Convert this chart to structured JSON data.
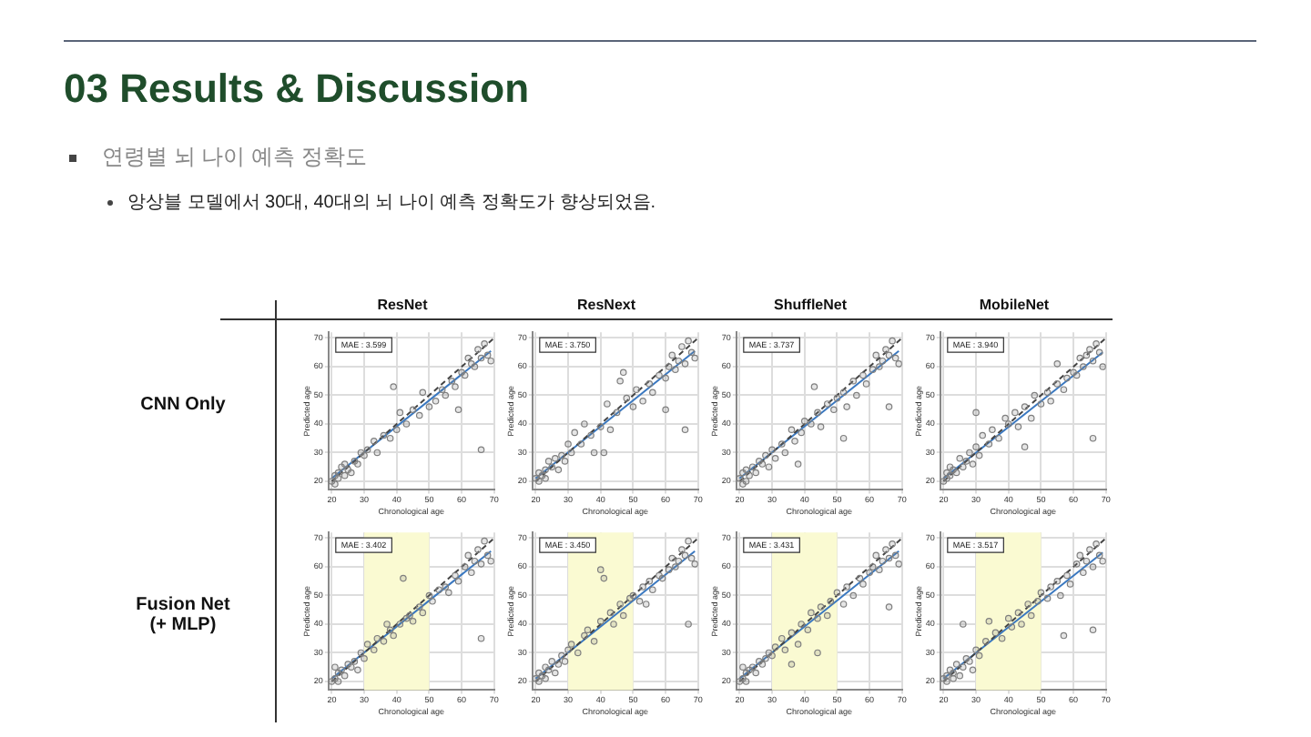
{
  "chart_data": [
    {
      "type": "scatter",
      "title": "ResNet",
      "xlabel": "Chronological age",
      "ylabel": "Predicted age",
      "annotations": [
        "03 Results & Discussion",
        "연령별 뇌 나이 예측 정확도",
        "앙상블 모델에서 30대, 40대의 뇌 나이 예측 정확도가 향상되었음.",
        "MAE : 3.599",
        "CNN Only"
      ],
      "xlim": [
        19,
        70
      ],
      "ylim": [
        17,
        72
      ],
      "xticks": [
        20,
        30,
        40,
        50,
        60,
        70
      ],
      "yticks": [
        20,
        30,
        40,
        50,
        60,
        70
      ],
      "grid": true,
      "legend": false,
      "marker": "circle",
      "series": [
        {
          "type": "scatter",
          "color": "#7f7f7f",
          "x": [
            20,
            21,
            21,
            22,
            22,
            23,
            24,
            24,
            25,
            26,
            27,
            28,
            29,
            30,
            31,
            33,
            34,
            36,
            38,
            40,
            41,
            43,
            45,
            47,
            48,
            50,
            52,
            54,
            55,
            57,
            58,
            60,
            61,
            62,
            63,
            64,
            65,
            66,
            67,
            68,
            69,
            66,
            39,
            59
          ],
          "values": [
            20,
            22,
            19,
            23,
            21,
            25,
            22,
            26,
            24,
            23,
            27,
            26,
            30,
            29,
            31,
            34,
            30,
            36,
            35,
            38,
            44,
            40,
            45,
            43,
            51,
            46,
            48,
            52,
            50,
            55,
            53,
            58,
            57,
            63,
            61,
            60,
            66,
            63,
            68,
            64,
            62,
            31,
            53,
            45
          ]
        },
        {
          "type": "line",
          "color": "#444444",
          "line_style": "dashed",
          "marker": "none",
          "x": [
            20,
            70
          ],
          "values": [
            20,
            70
          ]
        },
        {
          "type": "line",
          "color": "#3a78c0",
          "marker": "none",
          "x": [
            20,
            69
          ],
          "values": [
            21,
            65.5
          ]
        }
      ]
    },
    {
      "type": "scatter",
      "title": "ResNext",
      "xlabel": "Chronological age",
      "ylabel": "Predicted age",
      "annotations": [
        "MAE : 3.750"
      ],
      "xlim": [
        19,
        70
      ],
      "ylim": [
        17,
        72
      ],
      "xticks": [
        20,
        30,
        40,
        50,
        60,
        70
      ],
      "yticks": [
        20,
        30,
        40,
        50,
        60,
        70
      ],
      "grid": true,
      "legend": false,
      "marker": "circle",
      "series": [
        {
          "type": "scatter",
          "color": "#7f7f7f",
          "x": [
            20,
            21,
            21,
            22,
            23,
            23,
            24,
            25,
            26,
            27,
            28,
            29,
            30,
            31,
            32,
            34,
            35,
            37,
            38,
            40,
            42,
            43,
            45,
            46,
            48,
            50,
            51,
            53,
            55,
            56,
            58,
            60,
            61,
            62,
            63,
            64,
            65,
            66,
            67,
            68,
            69,
            66,
            41,
            60,
            47
          ],
          "values": [
            21,
            20,
            23,
            22,
            24,
            21,
            27,
            25,
            28,
            24,
            29,
            27,
            33,
            30,
            37,
            33,
            40,
            36,
            30,
            39,
            47,
            38,
            44,
            55,
            49,
            46,
            52,
            48,
            54,
            51,
            57,
            56,
            60,
            64,
            59,
            62,
            67,
            61,
            69,
            65,
            63,
            38,
            30,
            45,
            58
          ]
        },
        {
          "type": "line",
          "color": "#444444",
          "line_style": "dashed",
          "marker": "none",
          "x": [
            20,
            70
          ],
          "values": [
            20,
            70
          ]
        },
        {
          "type": "line",
          "color": "#3a78c0",
          "marker": "none",
          "x": [
            20,
            69
          ],
          "values": [
            21,
            65.5
          ]
        }
      ]
    },
    {
      "type": "scatter",
      "title": "ShuffleNet",
      "xlabel": "Chronological age",
      "ylabel": "Predicted age",
      "annotations": [
        "MAE : 3.737"
      ],
      "xlim": [
        19,
        70
      ],
      "ylim": [
        17,
        72
      ],
      "xticks": [
        20,
        30,
        40,
        50,
        60,
        70
      ],
      "yticks": [
        20,
        30,
        40,
        50,
        60,
        70
      ],
      "grid": true,
      "legend": false,
      "marker": "circle",
      "series": [
        {
          "type": "scatter",
          "color": "#7f7f7f",
          "x": [
            20,
            21,
            21,
            22,
            22,
            23,
            24,
            25,
            26,
            27,
            28,
            29,
            30,
            31,
            33,
            34,
            36,
            37,
            39,
            40,
            42,
            44,
            45,
            47,
            49,
            50,
            52,
            53,
            55,
            56,
            58,
            59,
            61,
            62,
            63,
            64,
            65,
            66,
            67,
            68,
            69,
            66,
            38,
            52,
            43
          ],
          "values": [
            21,
            19,
            23,
            20,
            24,
            22,
            25,
            23,
            27,
            26,
            29,
            25,
            31,
            28,
            33,
            30,
            38,
            34,
            37,
            41,
            40,
            44,
            39,
            47,
            45,
            49,
            51,
            46,
            55,
            50,
            57,
            54,
            59,
            64,
            60,
            62,
            66,
            64,
            69,
            63,
            61,
            46,
            26,
            35,
            53
          ]
        },
        {
          "type": "line",
          "color": "#444444",
          "line_style": "dashed",
          "marker": "none",
          "x": [
            20,
            70
          ],
          "values": [
            20,
            70
          ]
        },
        {
          "type": "line",
          "color": "#3a78c0",
          "marker": "none",
          "x": [
            20,
            69
          ],
          "values": [
            21,
            65.5
          ]
        }
      ]
    },
    {
      "type": "scatter",
      "title": "MobileNet",
      "xlabel": "Chronological age",
      "ylabel": "Predicted age",
      "annotations": [
        "MAE : 3.940"
      ],
      "xlim": [
        19,
        70
      ],
      "ylim": [
        17,
        72
      ],
      "xticks": [
        20,
        30,
        40,
        50,
        60,
        70
      ],
      "yticks": [
        20,
        30,
        40,
        50,
        60,
        70
      ],
      "grid": true,
      "legend": false,
      "marker": "circle",
      "series": [
        {
          "type": "scatter",
          "color": "#7f7f7f",
          "x": [
            20,
            21,
            21,
            22,
            22,
            23,
            24,
            25,
            26,
            27,
            28,
            29,
            30,
            31,
            32,
            34,
            35,
            37,
            39,
            40,
            42,
            43,
            45,
            47,
            48,
            50,
            52,
            53,
            55,
            57,
            58,
            60,
            61,
            62,
            63,
            64,
            65,
            66,
            67,
            68,
            69,
            66,
            30,
            45,
            55
          ],
          "values": [
            20,
            23,
            21,
            22,
            25,
            24,
            23,
            28,
            25,
            27,
            30,
            26,
            32,
            29,
            36,
            33,
            38,
            35,
            42,
            40,
            44,
            39,
            46,
            42,
            50,
            47,
            51,
            48,
            54,
            52,
            56,
            58,
            57,
            63,
            60,
            64,
            66,
            62,
            68,
            65,
            60,
            35,
            44,
            32,
            61
          ]
        },
        {
          "type": "line",
          "color": "#444444",
          "line_style": "dashed",
          "marker": "none",
          "x": [
            20,
            70
          ],
          "values": [
            20,
            70
          ]
        },
        {
          "type": "line",
          "color": "#3a78c0",
          "marker": "none",
          "x": [
            20,
            69
          ],
          "values": [
            21,
            65
          ]
        }
      ]
    },
    {
      "type": "scatter",
      "xlabel": "Chronological age",
      "ylabel": "Predicted age",
      "annotations": [
        "MAE : 3.402",
        "Fusion Net\n(+ MLP)"
      ],
      "xlim": [
        19,
        70
      ],
      "ylim": [
        17,
        72
      ],
      "xticks": [
        20,
        30,
        40,
        50,
        60,
        70
      ],
      "yticks": [
        20,
        30,
        40,
        50,
        60,
        70
      ],
      "grid": true,
      "legend": false,
      "marker": "circle",
      "bands": [
        {
          "axis": "x",
          "from": 30,
          "to": 50,
          "color": "#fafad2"
        }
      ],
      "series": [
        {
          "type": "scatter",
          "color": "#7f7f7f",
          "x": [
            20,
            21,
            21,
            22,
            22,
            23,
            24,
            25,
            26,
            27,
            28,
            29,
            30,
            31,
            33,
            34,
            36,
            38,
            39,
            41,
            42,
            44,
            45,
            47,
            48,
            50,
            51,
            53,
            55,
            56,
            58,
            59,
            61,
            62,
            63,
            64,
            65,
            66,
            67,
            68,
            69,
            66,
            43,
            37
          ],
          "values": [
            20,
            25,
            21,
            23,
            20,
            24,
            22,
            26,
            25,
            27,
            24,
            30,
            28,
            33,
            31,
            35,
            34,
            38,
            36,
            40,
            56,
            43,
            41,
            46,
            44,
            50,
            48,
            52,
            53,
            51,
            57,
            55,
            60,
            64,
            58,
            62,
            66,
            61,
            69,
            64,
            62,
            35,
            42,
            40
          ]
        },
        {
          "type": "line",
          "color": "#444444",
          "line_style": "dashed",
          "marker": "none",
          "x": [
            20,
            70
          ],
          "values": [
            20,
            70
          ]
        },
        {
          "type": "line",
          "color": "#3a78c0",
          "marker": "none",
          "x": [
            20,
            69
          ],
          "values": [
            21,
            65.5
          ]
        }
      ]
    },
    {
      "type": "scatter",
      "xlabel": "Chronological age",
      "ylabel": "Predicted age",
      "annotations": [
        "MAE : 3.450"
      ],
      "xlim": [
        19,
        70
      ],
      "ylim": [
        17,
        72
      ],
      "xticks": [
        20,
        30,
        40,
        50,
        60,
        70
      ],
      "yticks": [
        20,
        30,
        40,
        50,
        60,
        70
      ],
      "grid": true,
      "legend": false,
      "marker": "circle",
      "bands": [
        {
          "axis": "x",
          "from": 30,
          "to": 50,
          "color": "#fafad2"
        }
      ],
      "series": [
        {
          "type": "scatter",
          "color": "#7f7f7f",
          "x": [
            20,
            21,
            21,
            22,
            23,
            23,
            24,
            25,
            26,
            27,
            28,
            29,
            30,
            31,
            33,
            35,
            36,
            38,
            40,
            41,
            43,
            44,
            46,
            47,
            49,
            50,
            52,
            53,
            55,
            56,
            58,
            59,
            61,
            62,
            63,
            64,
            65,
            66,
            67,
            68,
            69,
            67,
            40,
            54
          ],
          "values": [
            21,
            20,
            23,
            22,
            25,
            21,
            24,
            27,
            23,
            26,
            29,
            27,
            31,
            33,
            30,
            36,
            38,
            34,
            41,
            56,
            44,
            40,
            47,
            43,
            49,
            50,
            48,
            53,
            55,
            52,
            57,
            56,
            59,
            63,
            60,
            62,
            66,
            64,
            69,
            63,
            61,
            40,
            59,
            47
          ]
        },
        {
          "type": "line",
          "color": "#444444",
          "line_style": "dashed",
          "marker": "none",
          "x": [
            20,
            70
          ],
          "values": [
            20,
            70
          ]
        },
        {
          "type": "line",
          "color": "#3a78c0",
          "marker": "none",
          "x": [
            20,
            69
          ],
          "values": [
            21,
            65.5
          ]
        }
      ]
    },
    {
      "type": "scatter",
      "xlabel": "Chronological age",
      "ylabel": "Predicted age",
      "annotations": [
        "MAE : 3.431"
      ],
      "xlim": [
        19,
        70
      ],
      "ylim": [
        17,
        72
      ],
      "xticks": [
        20,
        30,
        40,
        50,
        60,
        70
      ],
      "yticks": [
        20,
        30,
        40,
        50,
        60,
        70
      ],
      "grid": true,
      "legend": false,
      "marker": "circle",
      "bands": [
        {
          "axis": "x",
          "from": 30,
          "to": 50,
          "color": "#fafad2"
        }
      ],
      "series": [
        {
          "type": "scatter",
          "color": "#7f7f7f",
          "x": [
            20,
            21,
            21,
            22,
            22,
            23,
            24,
            25,
            26,
            27,
            28,
            29,
            30,
            31,
            33,
            34,
            36,
            38,
            39,
            41,
            42,
            44,
            45,
            47,
            48,
            50,
            52,
            53,
            55,
            57,
            58,
            60,
            61,
            62,
            63,
            64,
            65,
            66,
            67,
            68,
            69,
            66,
            36,
            44
          ],
          "values": [
            20,
            25,
            21,
            23,
            20,
            24,
            25,
            23,
            27,
            26,
            28,
            30,
            29,
            32,
            35,
            31,
            37,
            33,
            40,
            38,
            44,
            42,
            46,
            43,
            48,
            51,
            47,
            53,
            50,
            56,
            54,
            58,
            60,
            64,
            59,
            62,
            66,
            63,
            68,
            64,
            61,
            46,
            26,
            30
          ]
        },
        {
          "type": "line",
          "color": "#444444",
          "line_style": "dashed",
          "marker": "none",
          "x": [
            20,
            70
          ],
          "values": [
            20,
            70
          ]
        },
        {
          "type": "line",
          "color": "#3a78c0",
          "marker": "none",
          "x": [
            20,
            69
          ],
          "values": [
            21,
            65.5
          ]
        }
      ]
    },
    {
      "type": "scatter",
      "xlabel": "Chronological age",
      "ylabel": "Predicted age",
      "annotations": [
        "MAE : 3.517"
      ],
      "xlim": [
        19,
        70
      ],
      "ylim": [
        17,
        72
      ],
      "xticks": [
        20,
        30,
        40,
        50,
        60,
        70
      ],
      "yticks": [
        20,
        30,
        40,
        50,
        60,
        70
      ],
      "grid": true,
      "legend": false,
      "marker": "circle",
      "bands": [
        {
          "axis": "x",
          "from": 30,
          "to": 50,
          "color": "#fafad2"
        }
      ],
      "series": [
        {
          "type": "scatter",
          "color": "#7f7f7f",
          "x": [
            20,
            21,
            21,
            22,
            23,
            23,
            24,
            25,
            26,
            27,
            28,
            29,
            30,
            31,
            33,
            34,
            36,
            38,
            40,
            41,
            43,
            44,
            46,
            47,
            49,
            50,
            52,
            53,
            55,
            56,
            58,
            59,
            61,
            62,
            63,
            64,
            65,
            66,
            67,
            68,
            69,
            66,
            26,
            57
          ],
          "values": [
            21,
            20,
            22,
            24,
            21,
            23,
            26,
            22,
            25,
            28,
            27,
            24,
            31,
            29,
            34,
            41,
            37,
            35,
            42,
            39,
            44,
            40,
            47,
            43,
            48,
            51,
            49,
            53,
            55,
            50,
            57,
            54,
            61,
            64,
            58,
            62,
            66,
            60,
            68,
            64,
            62,
            38,
            40,
            36
          ]
        },
        {
          "type": "line",
          "color": "#444444",
          "line_style": "dashed",
          "marker": "none",
          "x": [
            20,
            70
          ],
          "values": [
            20,
            70
          ]
        },
        {
          "type": "line",
          "color": "#3a78c0",
          "marker": "none",
          "x": [
            20,
            69
          ],
          "values": [
            21,
            65
          ]
        }
      ]
    }
  ]
}
